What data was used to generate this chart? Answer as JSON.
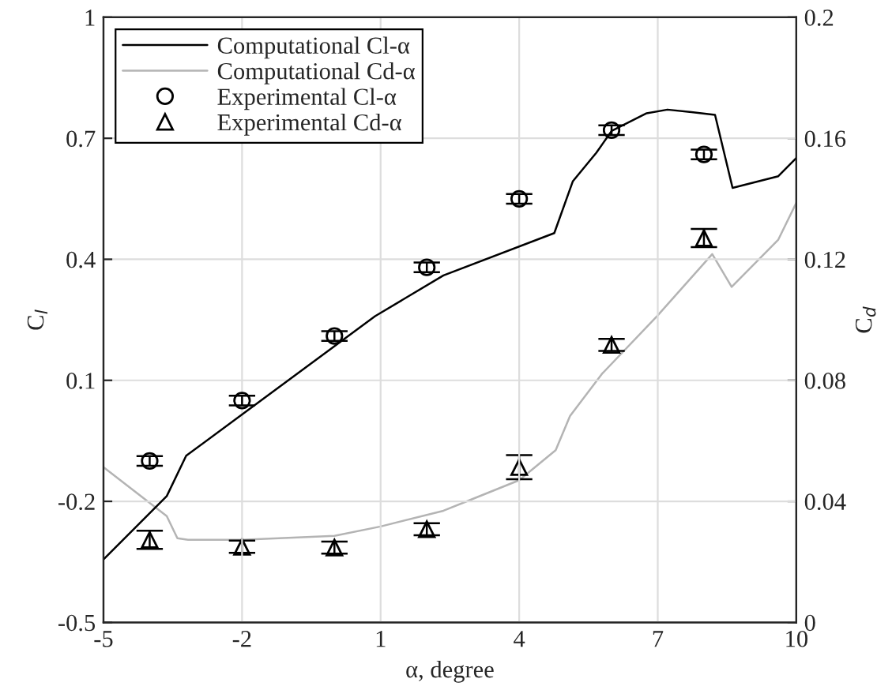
{
  "chart_data": {
    "type": "line",
    "xlabel": "α, degree",
    "ylabel": "C$_{l}$",
    "y2label": "C$_{d}$",
    "xlim": [
      -5,
      10
    ],
    "xticks": [
      -5,
      -2,
      1,
      4,
      7,
      10
    ],
    "ylim": [
      -0.5,
      1
    ],
    "yticks": [
      -0.5,
      -0.2,
      0.1,
      0.4,
      0.7,
      1
    ],
    "y2lim": [
      0,
      0.2
    ],
    "y2ticks": [
      0,
      0.04,
      0.08,
      0.12,
      0.16,
      0.2
    ],
    "grid": true,
    "legend": "top left",
    "series": [
      {
        "name": "Computational Cl-α",
        "color": "#000000",
        "marker": "none",
        "x": [
          -5,
          -3.63,
          -3.21,
          0.88,
          2.36,
          4.76,
          5.16,
          5.67,
          6.0,
          6.76,
          7.21,
          7.73,
          8.24,
          8.62,
          9.61,
          10
        ],
        "values": [
          -0.344,
          -0.187,
          -0.087,
          0.259,
          0.36,
          0.465,
          0.593,
          0.664,
          0.718,
          0.762,
          0.771,
          0.765,
          0.758,
          0.577,
          0.606,
          0.651
        ]
      },
      {
        "name": "Computational Cd-α",
        "axis": "y2",
        "color": "#b4b4b4",
        "marker": "none",
        "x": [
          -5,
          -3.63,
          -3.4,
          -3.17,
          -2,
          0,
          1,
          2.36,
          2.93,
          4,
          4.79,
          5.1,
          5.79,
          6.99,
          8.18,
          8.6,
          9.61,
          10
        ],
        "values": [
          0.0513,
          0.0351,
          0.0278,
          0.0273,
          0.0273,
          0.0286,
          0.0317,
          0.0369,
          0.0404,
          0.047,
          0.0569,
          0.0682,
          0.0821,
          0.1013,
          0.1217,
          0.1109,
          0.1265,
          0.1387
        ]
      },
      {
        "name": "Experimental Cl-α",
        "type": "scatter",
        "color": "#000000",
        "marker": "circle",
        "x": [
          -4,
          -2,
          0,
          2,
          4,
          6,
          8
        ],
        "values": [
          -0.1,
          0.05,
          0.21,
          0.38,
          0.55,
          0.72,
          0.66
        ],
        "errors": [
          0.012,
          0.012,
          0.012,
          0.012,
          0.012,
          0.012,
          0.012
        ]
      },
      {
        "name": "Experimental Cd-α",
        "type": "scatter",
        "axis": "y2",
        "color": "#000000",
        "marker": "triangle",
        "x": [
          -4,
          -2,
          0,
          2,
          4,
          6,
          8
        ],
        "values": [
          0.0273,
          0.025,
          0.0247,
          0.0308,
          0.0513,
          0.0917,
          0.127
        ],
        "errors": [
          0.003,
          0.002,
          0.002,
          0.002,
          0.004,
          0.002,
          0.003
        ]
      }
    ]
  }
}
